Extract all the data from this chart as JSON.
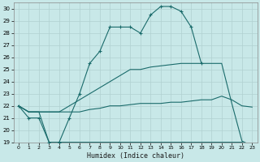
{
  "xlabel": "Humidex (Indice chaleur)",
  "background_color": "#c8e8e8",
  "grid_color": "#b0d0d0",
  "line_color": "#1a6b6b",
  "xlim": [
    -0.5,
    23.5
  ],
  "ylim": [
    19,
    30.5
  ],
  "yticks": [
    19,
    20,
    21,
    22,
    23,
    24,
    25,
    26,
    27,
    28,
    29,
    30
  ],
  "xticks": [
    0,
    1,
    2,
    3,
    4,
    5,
    6,
    7,
    8,
    9,
    10,
    11,
    12,
    13,
    14,
    15,
    16,
    17,
    18,
    19,
    20,
    21,
    22,
    23
  ],
  "series": [
    {
      "x": [
        0,
        1,
        2,
        3,
        4,
        5,
        6,
        7,
        8,
        9,
        10,
        11,
        12,
        13,
        14,
        15,
        16,
        17,
        18
      ],
      "y": [
        22,
        21,
        21,
        19,
        19,
        21,
        23,
        25.5,
        26.5,
        28.5,
        28.5,
        28.5,
        28,
        29.5,
        30.2,
        30.2,
        29.8,
        28.5,
        25.5
      ],
      "marker": true
    },
    {
      "x": [
        0,
        1,
        2,
        3,
        4,
        5,
        6,
        7,
        8,
        9,
        10,
        11,
        12,
        13,
        14,
        15,
        16,
        17,
        18,
        19,
        20,
        21,
        22,
        23
      ],
      "y": [
        22,
        21.5,
        21.5,
        21.5,
        21.5,
        22.0,
        22.5,
        23.0,
        23.5,
        24.0,
        24.5,
        25.0,
        25.0,
        25.2,
        25.3,
        25.4,
        25.5,
        25.5,
        25.5,
        25.5,
        25.5,
        22.2,
        19.1,
        18.7
      ],
      "marker": false
    },
    {
      "x": [
        0,
        1,
        2,
        3,
        4,
        5,
        6,
        7,
        8,
        9,
        10,
        11,
        12,
        13,
        14,
        15,
        16,
        17,
        18,
        19,
        20,
        21,
        22,
        23
      ],
      "y": [
        22,
        21.5,
        21.5,
        21.5,
        21.5,
        21.5,
        21.5,
        21.7,
        21.8,
        22.0,
        22.0,
        22.1,
        22.2,
        22.2,
        22.2,
        22.3,
        22.3,
        22.4,
        22.5,
        22.5,
        22.8,
        22.5,
        22.0,
        21.9
      ],
      "marker": false
    },
    {
      "x": [
        0,
        1,
        2,
        3,
        4,
        5,
        6,
        7,
        8,
        9,
        10,
        11,
        12,
        13,
        14,
        15,
        16,
        17,
        18,
        19,
        20,
        21,
        22,
        23
      ],
      "y": [
        22,
        21.5,
        21.5,
        19,
        19,
        19,
        19,
        19,
        19,
        19,
        19,
        19,
        19,
        19,
        19,
        19,
        19,
        19,
        19,
        19,
        19,
        19,
        19,
        18.7
      ],
      "marker": false
    }
  ]
}
